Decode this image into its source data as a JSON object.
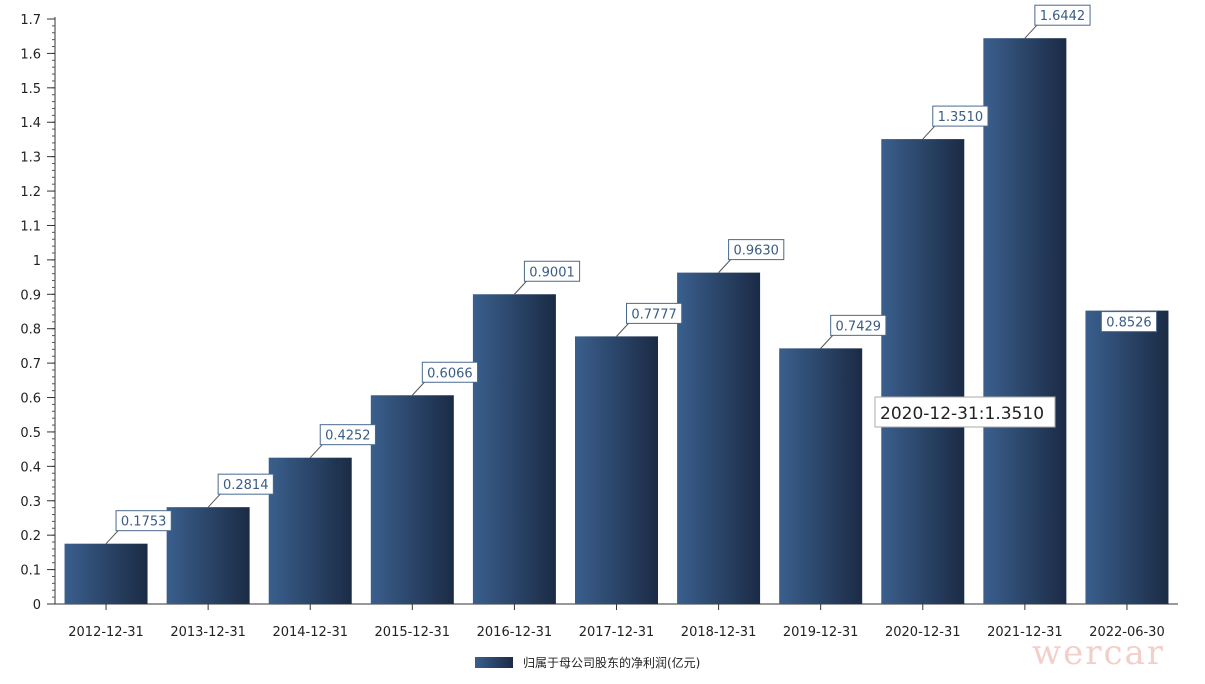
{
  "chart_data": {
    "type": "bar",
    "categories": [
      "2012-12-31",
      "2013-12-31",
      "2014-12-31",
      "2015-12-31",
      "2016-12-31",
      "2017-12-31",
      "2018-12-31",
      "2019-12-31",
      "2020-12-31",
      "2021-12-31",
      "2022-06-30"
    ],
    "series": [
      {
        "name": "归属于母公司股东的净利润(亿元)",
        "values": [
          0.1753,
          0.2814,
          0.4252,
          0.6066,
          0.9001,
          0.7777,
          0.963,
          0.7429,
          1.351,
          1.6442,
          0.8526
        ],
        "labels": [
          "0.1753",
          "0.2814",
          "0.4252",
          "0.6066",
          "0.9001",
          "0.7777",
          "0.9630",
          "0.7429",
          "1.3510",
          "1.6442",
          "0.8526"
        ]
      }
    ],
    "yticks": [
      "0",
      "0.1",
      "0.2",
      "0.3",
      "0.4",
      "0.5",
      "0.6",
      "0.7",
      "0.8",
      "0.9",
      "1",
      "1.1",
      "1.2",
      "1.3",
      "1.4",
      "1.5",
      "1.6",
      "1.7"
    ],
    "ylim": [
      0,
      1.7
    ],
    "legend_position": "bottom-center",
    "grid": false,
    "bar_color_start": "#3a5f8d",
    "bar_color_end": "#1b2b45"
  },
  "tooltip": {
    "text": "2020-12-31:1.3510",
    "category_index": 8
  },
  "watermark": {
    "text": "wercar"
  }
}
